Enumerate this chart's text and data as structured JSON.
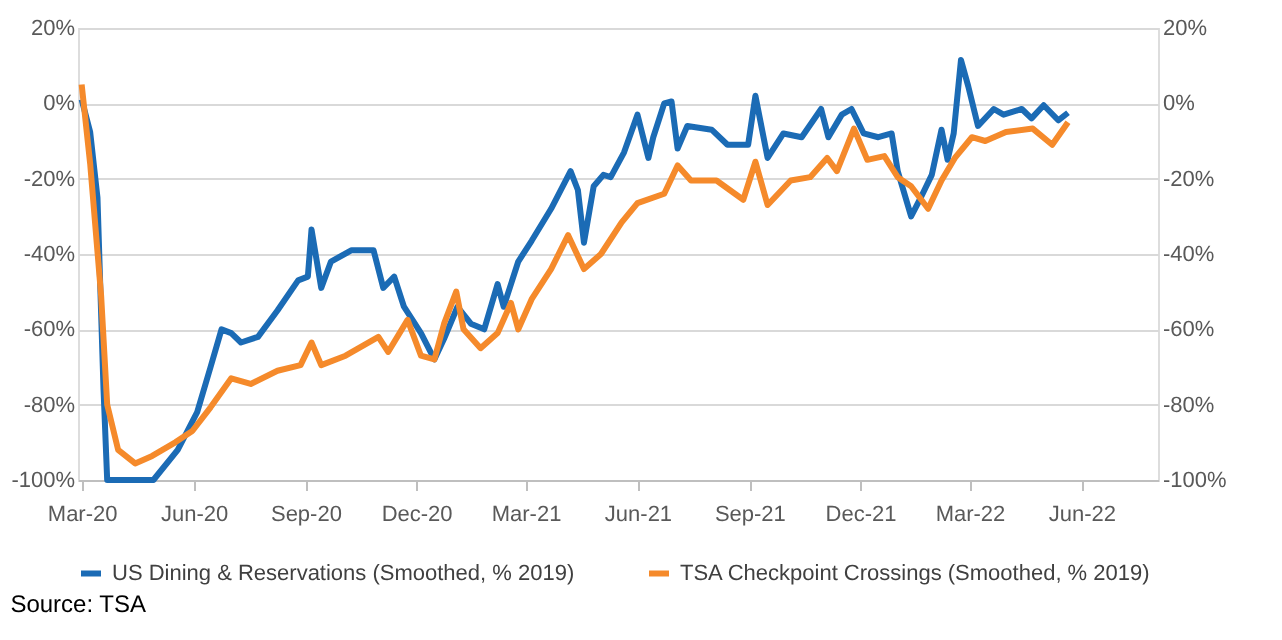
{
  "chart_data": {
    "type": "line",
    "x": [
      "2020-03-01",
      "2020-03-08",
      "2020-03-14",
      "2020-03-19",
      "2020-03-22",
      "2020-04-29",
      "2020-05-19",
      "2020-06-04",
      "2020-06-15",
      "2020-06-24",
      "2020-07-02",
      "2020-07-10",
      "2020-07-24",
      "2020-08-09",
      "2020-08-26",
      "2020-09-03",
      "2020-09-06",
      "2020-09-14",
      "2020-09-22",
      "2020-10-09",
      "2020-10-27",
      "2020-11-04",
      "2020-11-13",
      "2020-11-21",
      "2020-12-05",
      "2020-12-16",
      "2020-12-24",
      "2021-01-04",
      "2021-01-15",
      "2021-01-26",
      "2021-02-06",
      "2021-02-11",
      "2021-02-23",
      "2021-03-06",
      "2021-03-22",
      "2021-04-07",
      "2021-04-13",
      "2021-04-18",
      "2021-04-26",
      "2021-05-04",
      "2021-05-10",
      "2021-05-21",
      "2021-06-01",
      "2021-06-10",
      "2021-06-14",
      "2021-06-23",
      "2021-06-29",
      "2021-07-04",
      "2021-07-12",
      "2021-08-01",
      "2021-08-14",
      "2021-08-31",
      "2021-09-06",
      "2021-09-16",
      "2021-09-29",
      "2021-10-14",
      "2021-10-30",
      "2021-11-05",
      "2021-11-16",
      "2021-11-24",
      "2021-12-04",
      "2021-12-16",
      "2021-12-27",
      "2022-01-01",
      "2022-01-12",
      "2022-01-20",
      "2022-01-29",
      "2022-02-06",
      "2022-02-11",
      "2022-02-16",
      "2022-02-22",
      "2022-02-28",
      "2022-03-08",
      "2022-03-21",
      "2022-03-29",
      "2022-04-13",
      "2022-04-21",
      "2022-05-01",
      "2022-05-13",
      "2022-05-21"
    ],
    "series": [
      {
        "name": "US Dining & Reservations (Smoothed, % 2019)",
        "color": "#1b6bb5",
        "values": [
          1,
          -7.6,
          -25,
          -76,
          -100,
          -100,
          -92,
          -82,
          -70,
          -60,
          -61,
          -63.5,
          -62,
          -55,
          -47,
          -46,
          -33.5,
          -49,
          -42,
          -39,
          -39,
          -49,
          -46,
          -54,
          -61,
          -68,
          -62.5,
          -54,
          -58.5,
          -60,
          -48,
          -54,
          -42,
          -36.5,
          -28,
          -18,
          -23,
          -37,
          -22,
          -19,
          -19.6,
          -13,
          -3,
          -14.5,
          -9,
          0,
          0.5,
          -12,
          -6,
          -7,
          -11,
          -11,
          2,
          -14.5,
          -8,
          -9,
          -1.5,
          -9,
          -3,
          -1.5,
          -8,
          -9,
          -8,
          -18,
          -30,
          -25,
          -19,
          -7,
          -15,
          -8,
          11.5,
          4.5,
          -6,
          -1.5,
          -3,
          -1.5,
          -4,
          -0.5,
          -4.5,
          -2.5
        ]
      },
      {
        "name": "TSA Checkpoint Crossings (Smoothed, % 2019)",
        "color": "#f58a2b",
        "x": [
          "2020-03-01",
          "2020-03-08",
          "2020-03-17",
          "2020-03-22",
          "2020-03-31",
          "2020-04-14",
          "2020-04-28",
          "2020-05-17",
          "2020-05-31",
          "2020-06-15",
          "2020-07-02",
          "2020-07-18",
          "2020-08-09",
          "2020-08-28",
          "2020-09-06",
          "2020-09-14",
          "2020-10-04",
          "2020-10-31",
          "2020-11-08",
          "2020-11-24",
          "2020-12-05",
          "2020-12-16",
          "2020-12-24",
          "2021-01-03",
          "2021-01-09",
          "2021-01-23",
          "2021-02-06",
          "2021-02-17",
          "2021-02-23",
          "2021-03-06",
          "2021-03-22",
          "2021-04-05",
          "2021-04-18",
          "2021-05-02",
          "2021-05-19",
          "2021-06-01",
          "2021-06-23",
          "2021-07-04",
          "2021-07-15",
          "2021-08-05",
          "2021-08-27",
          "2021-09-06",
          "2021-09-16",
          "2021-10-05",
          "2021-10-21",
          "2021-11-04",
          "2021-11-12",
          "2021-11-26",
          "2021-12-07",
          "2021-12-21",
          "2022-01-01",
          "2022-01-12",
          "2022-01-26",
          "2022-02-06",
          "2022-02-17",
          "2022-03-03",
          "2022-03-14",
          "2022-03-31",
          "2022-04-22",
          "2022-05-08",
          "2022-05-21"
        ],
        "values": [
          5,
          -16,
          -51,
          -80,
          -92,
          -95.6,
          -93.6,
          -90,
          -87,
          -80.7,
          -73,
          -74.5,
          -71,
          -69.5,
          -63.5,
          -69.5,
          -67,
          -62,
          -66,
          -57.5,
          -67,
          -68,
          -58.5,
          -50,
          -60,
          -65,
          -61,
          -53,
          -60,
          -52,
          -44,
          -35,
          -44,
          -40,
          -31.6,
          -26.5,
          -24,
          -16.5,
          -20.5,
          -20.5,
          -25.6,
          -15.5,
          -27,
          -20.5,
          -19.6,
          -14.5,
          -18,
          -6.7,
          -15,
          -14,
          -19.6,
          -22,
          -28,
          -20.5,
          -14.5,
          -9,
          -10,
          -7.6,
          -6.7,
          -11,
          -5
        ]
      }
    ],
    "xlim": [
      "2020-02-27",
      "2022-08-03"
    ],
    "xticks": [
      {
        "value": "2020-03-01",
        "label": "Mar-20"
      },
      {
        "value": "2020-06-01",
        "label": "Jun-20"
      },
      {
        "value": "2020-09-01",
        "label": "Sep-20"
      },
      {
        "value": "2020-12-01",
        "label": "Dec-20"
      },
      {
        "value": "2021-03-01",
        "label": "Mar-21"
      },
      {
        "value": "2021-06-01",
        "label": "Jun-21"
      },
      {
        "value": "2021-09-01",
        "label": "Sep-21"
      },
      {
        "value": "2021-12-01",
        "label": "Dec-21"
      },
      {
        "value": "2022-03-01",
        "label": "Mar-22"
      },
      {
        "value": "2022-06-01",
        "label": "Jun-22"
      }
    ],
    "ylim": [
      -100,
      20
    ],
    "yticks": [
      {
        "value": -100,
        "label": "-100%"
      },
      {
        "value": -80,
        "label": "-80%"
      },
      {
        "value": -60,
        "label": "-60%"
      },
      {
        "value": -40,
        "label": "-40%"
      },
      {
        "value": -20,
        "label": "-20%"
      },
      {
        "value": 0,
        "label": "0%"
      },
      {
        "value": 20,
        "label": "20%"
      }
    ],
    "y2lim": [
      -100,
      20
    ],
    "y2ticks": [
      {
        "value": -100,
        "label": "-100%"
      },
      {
        "value": -80,
        "label": "-80%"
      },
      {
        "value": -60,
        "label": "-60%"
      },
      {
        "value": -40,
        "label": "-40%"
      },
      {
        "value": -20,
        "label": "-20%"
      },
      {
        "value": 0,
        "label": "0%"
      },
      {
        "value": 20,
        "label": "20%"
      }
    ],
    "grid": "y",
    "legend": "bottom",
    "marker": "none",
    "line_style": "solid",
    "annotations": [
      "Source: TSA"
    ]
  }
}
